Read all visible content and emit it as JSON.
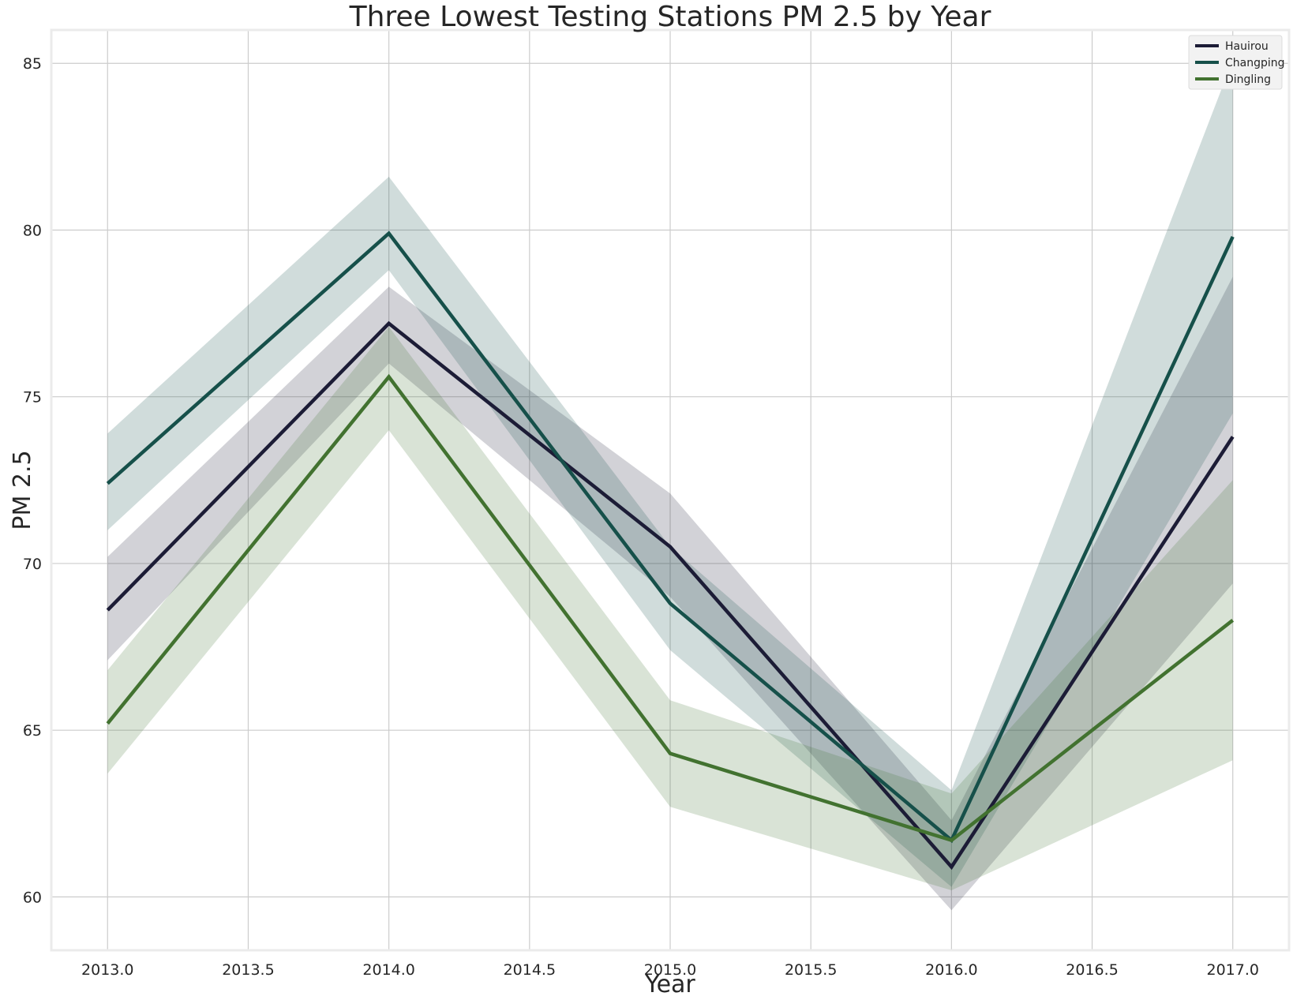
{
  "chart_data": {
    "type": "line",
    "title": "Three Lowest Testing Stations PM 2.5 by Year",
    "xlabel": "Year",
    "ylabel": "PM 2.5",
    "xlim": [
      2012.8,
      2017.2
    ],
    "ylim": [
      58.4,
      86.0
    ],
    "x_ticks": [
      2013.0,
      2013.5,
      2014.0,
      2014.5,
      2015.0,
      2015.5,
      2016.0,
      2016.5,
      2017.0
    ],
    "x_tick_labels": [
      "2013.0",
      "2013.5",
      "2014.0",
      "2014.5",
      "2015.0",
      "2015.5",
      "2016.0",
      "2016.5",
      "2017.0"
    ],
    "y_ticks": [
      60,
      65,
      70,
      75,
      80,
      85
    ],
    "y_tick_labels": [
      "60",
      "65",
      "70",
      "75",
      "80",
      "85"
    ],
    "grid": true,
    "legend_position": "top-right",
    "x": [
      2013,
      2014,
      2015,
      2016,
      2017
    ],
    "series": [
      {
        "name": "Hauirou",
        "color": "#1c1c36",
        "values": [
          68.6,
          77.2,
          70.5,
          60.9,
          73.8
        ],
        "ci_lower": [
          67.1,
          76.0,
          69.0,
          59.6,
          69.4
        ],
        "ci_upper": [
          70.2,
          78.3,
          72.1,
          62.3,
          78.6
        ]
      },
      {
        "name": "Changping",
        "color": "#16504a",
        "values": [
          72.4,
          79.9,
          68.8,
          61.7,
          79.8
        ],
        "ci_lower": [
          71.0,
          78.8,
          67.4,
          60.3,
          74.5
        ],
        "ci_upper": [
          73.9,
          81.6,
          70.5,
          63.2,
          85.1
        ]
      },
      {
        "name": "Dingling",
        "color": "#427230",
        "values": [
          65.2,
          75.6,
          64.3,
          61.7,
          68.3
        ],
        "ci_lower": [
          63.7,
          74.0,
          62.7,
          60.2,
          64.1
        ],
        "ci_upper": [
          66.8,
          77.1,
          65.9,
          63.1,
          72.5
        ]
      }
    ]
  }
}
